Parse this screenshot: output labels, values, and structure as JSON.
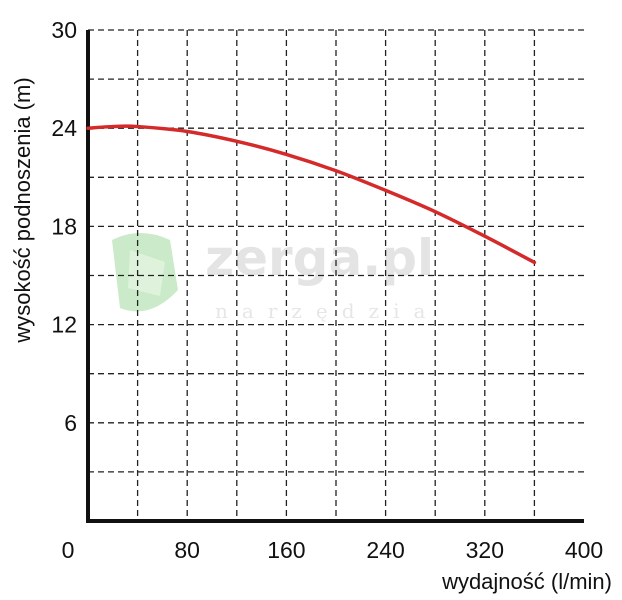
{
  "chart_data": {
    "type": "line",
    "xlabel": "wydajność (l/min)",
    "ylabel": "wysokość podnoszenia (m)",
    "xlim": [
      0,
      400
    ],
    "ylim": [
      0,
      30
    ],
    "x_ticks": [
      "0",
      "80",
      "160",
      "240",
      "320",
      "400"
    ],
    "y_ticks": [
      "6",
      "12",
      "18",
      "24",
      "30"
    ],
    "grid": true,
    "grid_style": "dashed",
    "series": [
      {
        "color": "#d42a2a",
        "x": [
          0,
          20,
          40,
          80,
          120,
          160,
          200,
          240,
          280,
          320,
          360
        ],
        "y": [
          24.0,
          24.1,
          24.1,
          23.8,
          23.2,
          22.4,
          21.4,
          20.2,
          18.9,
          17.4,
          15.8
        ]
      }
    ]
  },
  "watermark": {
    "brand": "zerga.pl",
    "tagline": "narzędzia",
    "color": "#8ed18a"
  }
}
